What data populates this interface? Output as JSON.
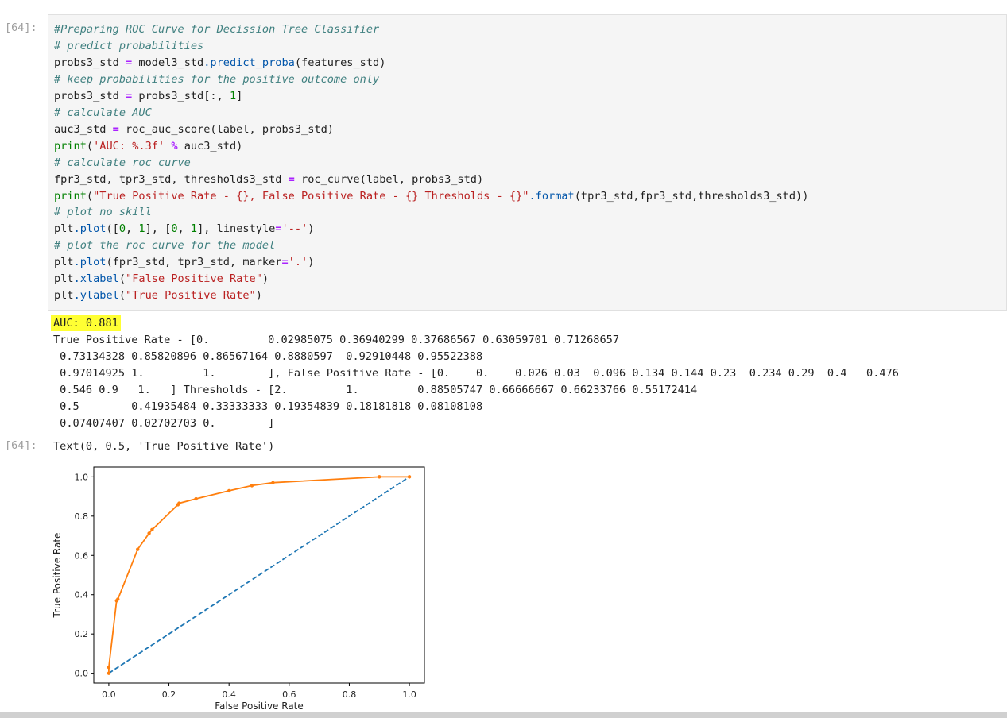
{
  "cell": {
    "prompt_in": "[64]:",
    "prompt_out": "[64]:",
    "code": {
      "l1": "#Preparing ROC Curve for Decission Tree Classifier",
      "l2": "# predict probabilities",
      "l3a": "probs3_std ",
      "l3b": "=",
      "l3c": " model3_std",
      "l3d": ".predict_proba",
      "l3e": "(features_std)",
      "l4": "# keep probabilities for the positive outcome only",
      "l5a": "probs3_std ",
      "l5b": "=",
      "l5c": " probs3_std[:, ",
      "l5d": "1",
      "l5e": "]",
      "l6": "# calculate AUC",
      "l7a": "auc3_std ",
      "l7b": "=",
      "l7c": " roc_auc_score(label, probs3_std)",
      "l8a": "print",
      "l8b": "(",
      "l8c": "'AUC: %.3f'",
      "l8d": " %",
      "l8e": " auc3_std)",
      "l9": "# calculate roc curve",
      "l10a": "fpr3_std, tpr3_std, thresholds3_std ",
      "l10b": "=",
      "l10c": " roc_curve(label, probs3_std)",
      "l11a": "print",
      "l11b": "(",
      "l11c": "\"True Positive Rate - {}, False Positive Rate - {} Thresholds - {}\"",
      "l11d": ".format",
      "l11e": "(tpr3_std,fpr3_std,thresholds3_std))",
      "l12": "# plot no skill",
      "l13a": "plt",
      "l13b": ".plot",
      "l13c": "([",
      "l13d": "0",
      "l13e": ", ",
      "l13f": "1",
      "l13g": "], [",
      "l13h": "0",
      "l13i": ", ",
      "l13j": "1",
      "l13k": "], linestyle",
      "l13l": "=",
      "l13m": "'--'",
      "l13n": ")",
      "l14": "# plot the roc curve for the model",
      "l15a": "plt",
      "l15b": ".plot",
      "l15c": "(fpr3_std, tpr3_std, marker",
      "l15d": "=",
      "l15e": "'.'",
      "l15f": ")",
      "l16a": "plt",
      "l16b": ".xlabel",
      "l16c": "(",
      "l16d": "\"False Positive Rate\"",
      "l16e": ")",
      "l17a": "plt",
      "l17b": ".ylabel",
      "l17c": "(",
      "l17d": "\"True Positive Rate\"",
      "l17e": ")"
    },
    "output": {
      "auc_line": "AUC: 0.881",
      "lines": [
        "True Positive Rate - [0.         0.02985075 0.36940299 0.37686567 0.63059701 0.71268657",
        " 0.73134328 0.85820896 0.86567164 0.8880597  0.92910448 0.95522388",
        " 0.97014925 1.         1.        ], False Positive Rate - [0.    0.    0.026 0.03  0.096 0.134 0.144 0.23  0.234 0.29  0.4   0.476",
        " 0.546 0.9   1.   ] Thresholds - [2.         1.         0.88505747 0.66666667 0.66233766 0.55172414",
        " 0.5        0.41935484 0.33333333 0.19354839 0.18181818 0.08108108",
        " 0.07407407 0.02702703 0.        ]"
      ],
      "result_text": "Text(0, 0.5, 'True Positive Rate')"
    }
  },
  "chart_data": {
    "type": "line",
    "xlabel": "False Positive Rate",
    "ylabel": "True Positive Rate",
    "xlim": [
      -0.05,
      1.05
    ],
    "ylim": [
      -0.05,
      1.05
    ],
    "xticks": [
      "0.0",
      "0.2",
      "0.4",
      "0.6",
      "0.8",
      "1.0"
    ],
    "yticks": [
      "0.0",
      "0.2",
      "0.4",
      "0.6",
      "0.8",
      "1.0"
    ],
    "grid": false,
    "series": [
      {
        "style": "dashed",
        "color": "#1f77b4",
        "x": [
          0,
          1
        ],
        "y": [
          0,
          1
        ]
      },
      {
        "style": "solid-marker",
        "color": "#ff7f0e",
        "x": [
          0,
          0,
          0.026,
          0.03,
          0.096,
          0.134,
          0.144,
          0.23,
          0.234,
          0.29,
          0.4,
          0.476,
          0.546,
          0.9,
          1.0
        ],
        "y": [
          0,
          0.02985075,
          0.36940299,
          0.37686567,
          0.63059701,
          0.71268657,
          0.73134328,
          0.85820896,
          0.86567164,
          0.8880597,
          0.92910448,
          0.95522388,
          0.97014925,
          1.0,
          1.0
        ]
      }
    ]
  }
}
